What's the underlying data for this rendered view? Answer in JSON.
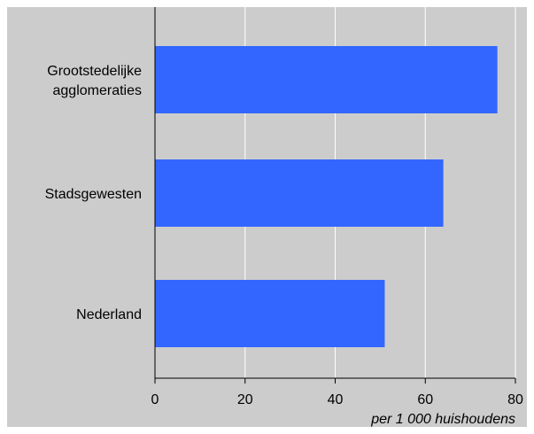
{
  "chart_data": {
    "type": "bar",
    "orientation": "horizontal",
    "categories": [
      "Grootstedelijke agglomeraties",
      "Stadsgewesten",
      "Nederland"
    ],
    "category_lines": [
      [
        "Grootstedelijke",
        "agglomeraties"
      ],
      [
        "Stadsgewesten"
      ],
      [
        "Nederland"
      ]
    ],
    "values": [
      76,
      64,
      51
    ],
    "xlabel": "per 1 000 huishoudens",
    "ylabel": "",
    "title": "",
    "xlim": [
      0,
      80
    ],
    "xticks": [
      0,
      20,
      40,
      60,
      80
    ],
    "tick_labels": [
      "0",
      "20",
      "40",
      "60",
      "80"
    ],
    "grid": "vertical",
    "colors": {
      "bar": "#3366ff",
      "background": "#cccccc",
      "grid": "#ffffff",
      "axis": "#000000"
    }
  }
}
